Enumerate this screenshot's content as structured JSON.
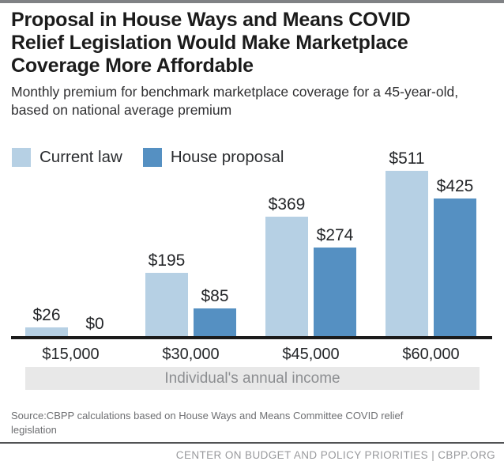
{
  "header": {
    "title_lines": [
      "Proposal in House Ways and Means COVID",
      "Relief Legislation Would Make Marketplace",
      "Coverage More Affordable"
    ],
    "subtitle_lines": [
      "Monthly premium for benchmark marketplace coverage for a 45-year-old,",
      "based on national average premium"
    ]
  },
  "legend": [
    {
      "label": "Current law",
      "color": "#b6d0e4"
    },
    {
      "label": "House proposal",
      "color": "#5590c2"
    }
  ],
  "chart_data": {
    "type": "bar",
    "categories": [
      "$15,000",
      "$30,000",
      "$45,000",
      "$60,000"
    ],
    "series": [
      {
        "name": "Current law",
        "color": "#b6d0e4",
        "values": [
          26,
          195,
          369,
          511
        ]
      },
      {
        "name": "House proposal",
        "color": "#5590c2",
        "values": [
          0,
          85,
          274,
          425
        ]
      }
    ],
    "value_labels": [
      [
        "$26",
        "$195",
        "$369",
        "$511"
      ],
      [
        "$0",
        "$85",
        "$274",
        "$425"
      ]
    ],
    "xlabel": "Individual's annual income",
    "ylabel": "",
    "ylim": [
      0,
      511
    ],
    "gridlines": false,
    "legend_position": "top-left"
  },
  "footer": {
    "source_lines": [
      "Source:CBPP calculations based on House Ways and Means Committee COVID relief",
      "legislation"
    ],
    "org_line": "CENTER ON BUDGET AND POLICY PRIORITIES | CBPP.ORG"
  }
}
